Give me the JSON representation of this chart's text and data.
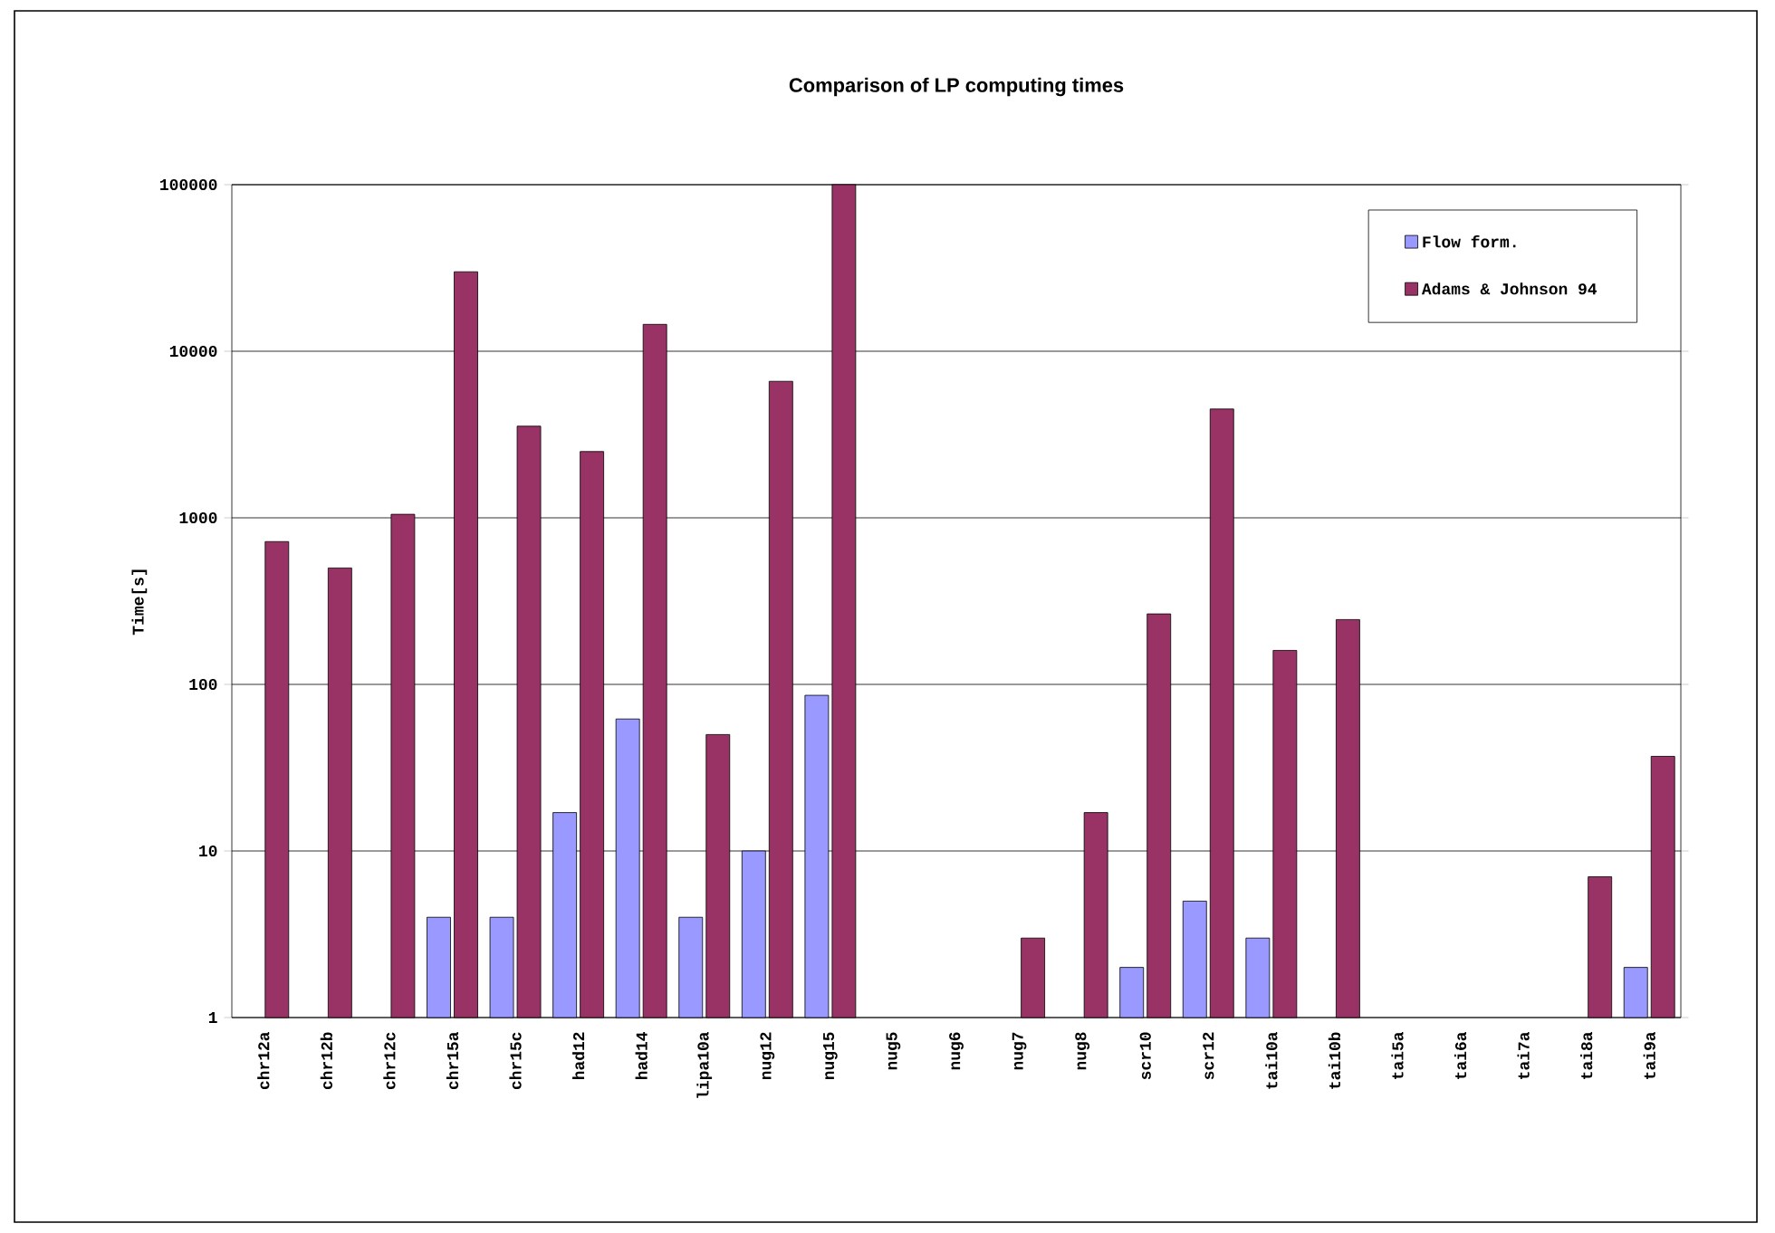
{
  "chart_data": {
    "type": "bar",
    "title": "Comparison of LP computing times",
    "ylabel": "Time[s]",
    "categories": [
      "chr12a",
      "chr12b",
      "chr12c",
      "chr15a",
      "chr15c",
      "had12",
      "had14",
      "lipa10a",
      "nug12",
      "nug15",
      "nug5",
      "nug6",
      "nug7",
      "nug8",
      "scr10",
      "scr12",
      "tai10a",
      "tai10b",
      "tai5a",
      "tai6a",
      "tai7a",
      "tai8a",
      "tai9a"
    ],
    "series": [
      {
        "name": "Flow form.",
        "color": "#9999ff",
        "values": [
          null,
          null,
          null,
          4,
          4,
          17,
          62,
          4,
          10,
          86,
          null,
          null,
          null,
          null,
          2,
          5,
          3,
          null,
          null,
          null,
          null,
          null,
          2
        ]
      },
      {
        "name": "Adams & Johnson 94",
        "color": "#993366",
        "values": [
          720,
          500,
          1050,
          30000,
          3550,
          2500,
          14500,
          50,
          6600,
          100000,
          null,
          null,
          3,
          17,
          265,
          4500,
          160,
          245,
          null,
          null,
          null,
          7,
          37
        ]
      }
    ],
    "log": true,
    "ylim": [
      1,
      100000
    ],
    "yticks": [
      1,
      10,
      100,
      1000,
      10000,
      100000
    ],
    "grid": "y",
    "legend": "top right"
  }
}
